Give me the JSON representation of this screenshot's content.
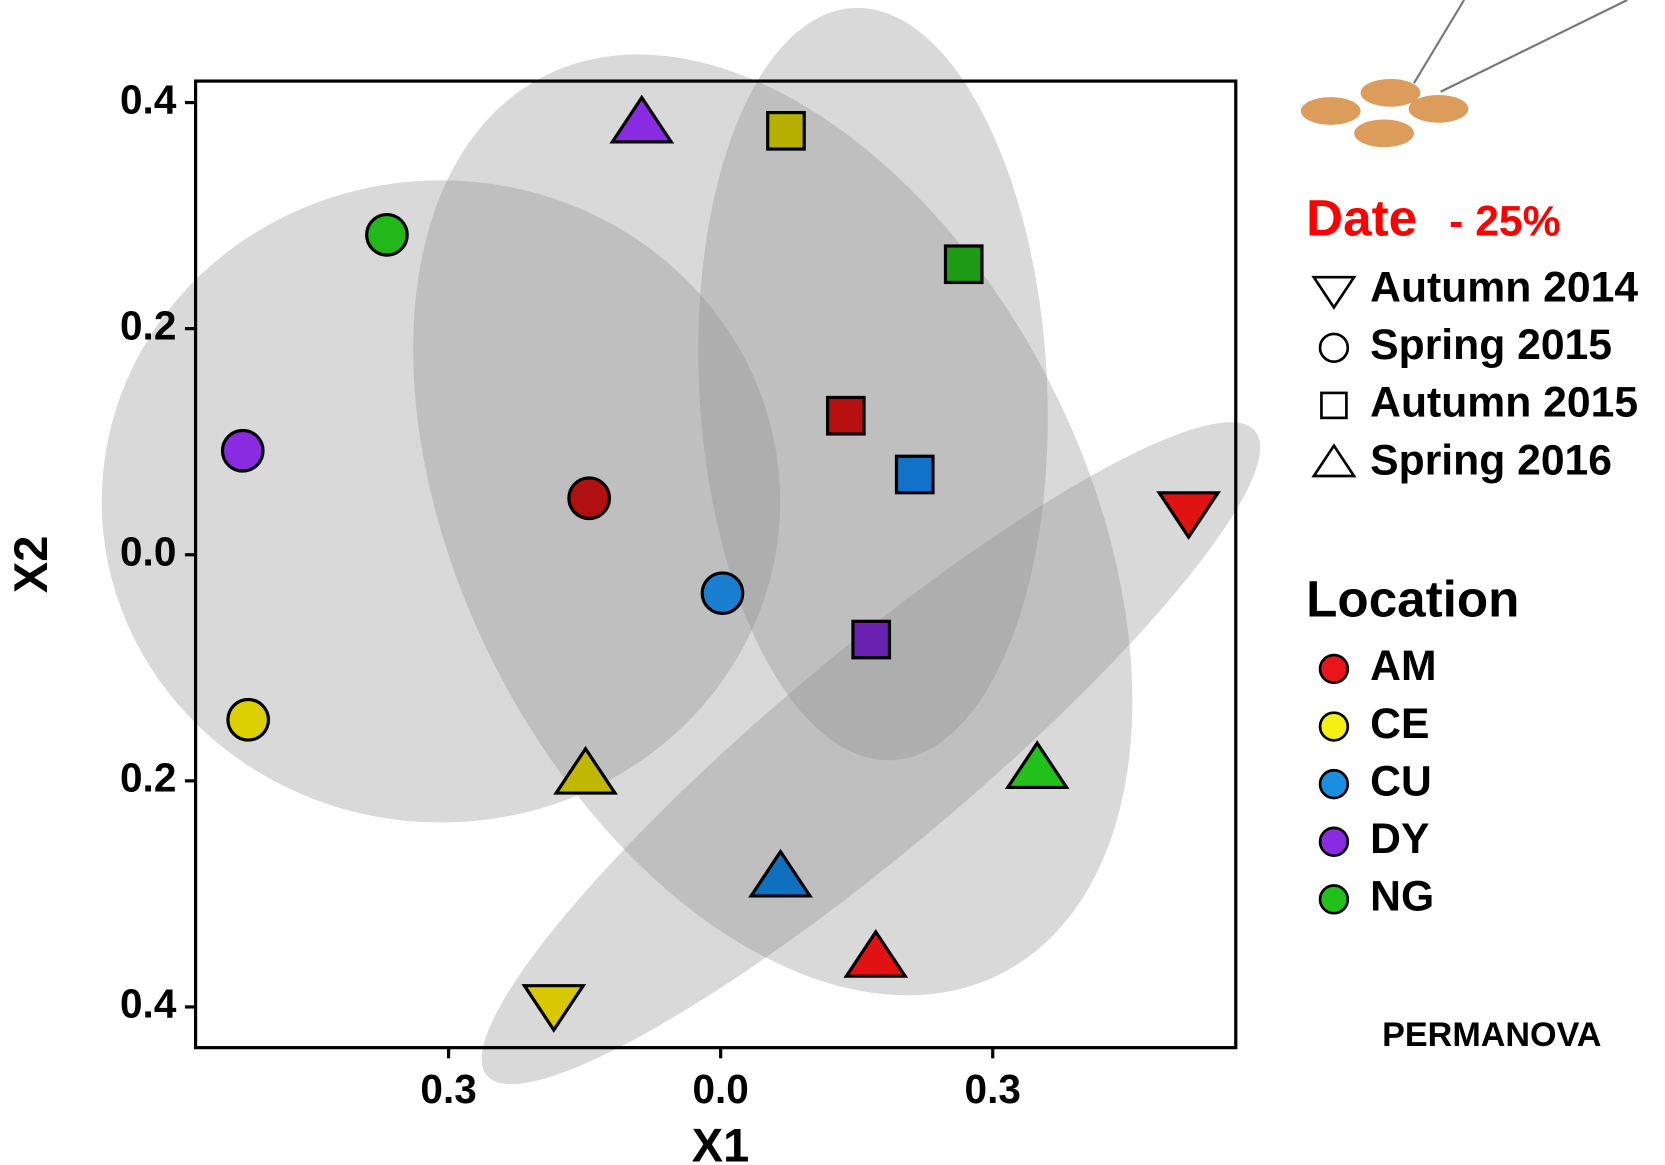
{
  "chart_data": {
    "type": "scatter",
    "x_label": "X1",
    "y_label": "X2",
    "xlim": [
      -0.579,
      0.568
    ],
    "ylim": [
      -0.436,
      0.419
    ],
    "xticks": [
      {
        "value": -0.3,
        "label": "0.3"
      },
      {
        "value": 0,
        "label": "0.0"
      },
      {
        "value": 0.3,
        "label": "0.3"
      }
    ],
    "yticks": [
      {
        "value": 0.4,
        "label": "0.4"
      },
      {
        "value": 0.2,
        "label": "0.2"
      },
      {
        "value": 0,
        "label": "0.0"
      },
      {
        "value": -0.2,
        "label": "0.2"
      },
      {
        "value": -0.4,
        "label": "0.4"
      }
    ],
    "series": [
      {
        "name": "Autumn 2014",
        "marker": "triangle-down",
        "x": [
          0.516,
          -0.184
        ],
        "y": [
          0.038,
          -0.398
        ],
        "colors": [
          "#e01212",
          "#d8c800"
        ]
      },
      {
        "name": "Spring 2015",
        "marker": "circle",
        "x": [
          -0.368,
          -0.527,
          -0.145,
          0.002,
          -0.521
        ],
        "y": [
          0.283,
          0.092,
          0.05,
          -0.034,
          -0.146
        ],
        "colors": [
          "#22b81a",
          "#8a2be2",
          "#b01010",
          "#1a7fd0",
          "#ddd000"
        ]
      },
      {
        "name": "Autumn 2015",
        "marker": "square",
        "x": [
          0.072,
          0.268,
          0.138,
          0.214,
          0.166
        ],
        "y": [
          0.375,
          0.257,
          0.123,
          0.071,
          -0.075
        ],
        "colors": [
          "#b8b000",
          "#1e9a14",
          "#b81010",
          "#1072c8",
          "#6a20b0"
        ]
      },
      {
        "name": "Spring 2016",
        "marker": "triangle-up",
        "x": [
          -0.087,
          -0.149,
          0.349,
          0.066,
          0.171
        ],
        "y": [
          0.382,
          -0.194,
          -0.189,
          -0.285,
          -0.356
        ],
        "colors": [
          "#8a2be2",
          "#c0b800",
          "#22c01a",
          "#1070c0",
          "#e01212"
        ]
      }
    ],
    "date_legend_title": "Date",
    "date_legend_note": "- 25%",
    "location_legend_title": "Location",
    "locations": [
      {
        "name": "AM",
        "color": "#e8161a"
      },
      {
        "name": "CE",
        "color": "#f5f011"
      },
      {
        "name": "CU",
        "color": "#1a8fe0"
      },
      {
        "name": "DY",
        "color": "#8a2be2"
      },
      {
        "name": "NG",
        "color": "#22c01a"
      }
    ],
    "annotation": "PERMANOVA"
  }
}
